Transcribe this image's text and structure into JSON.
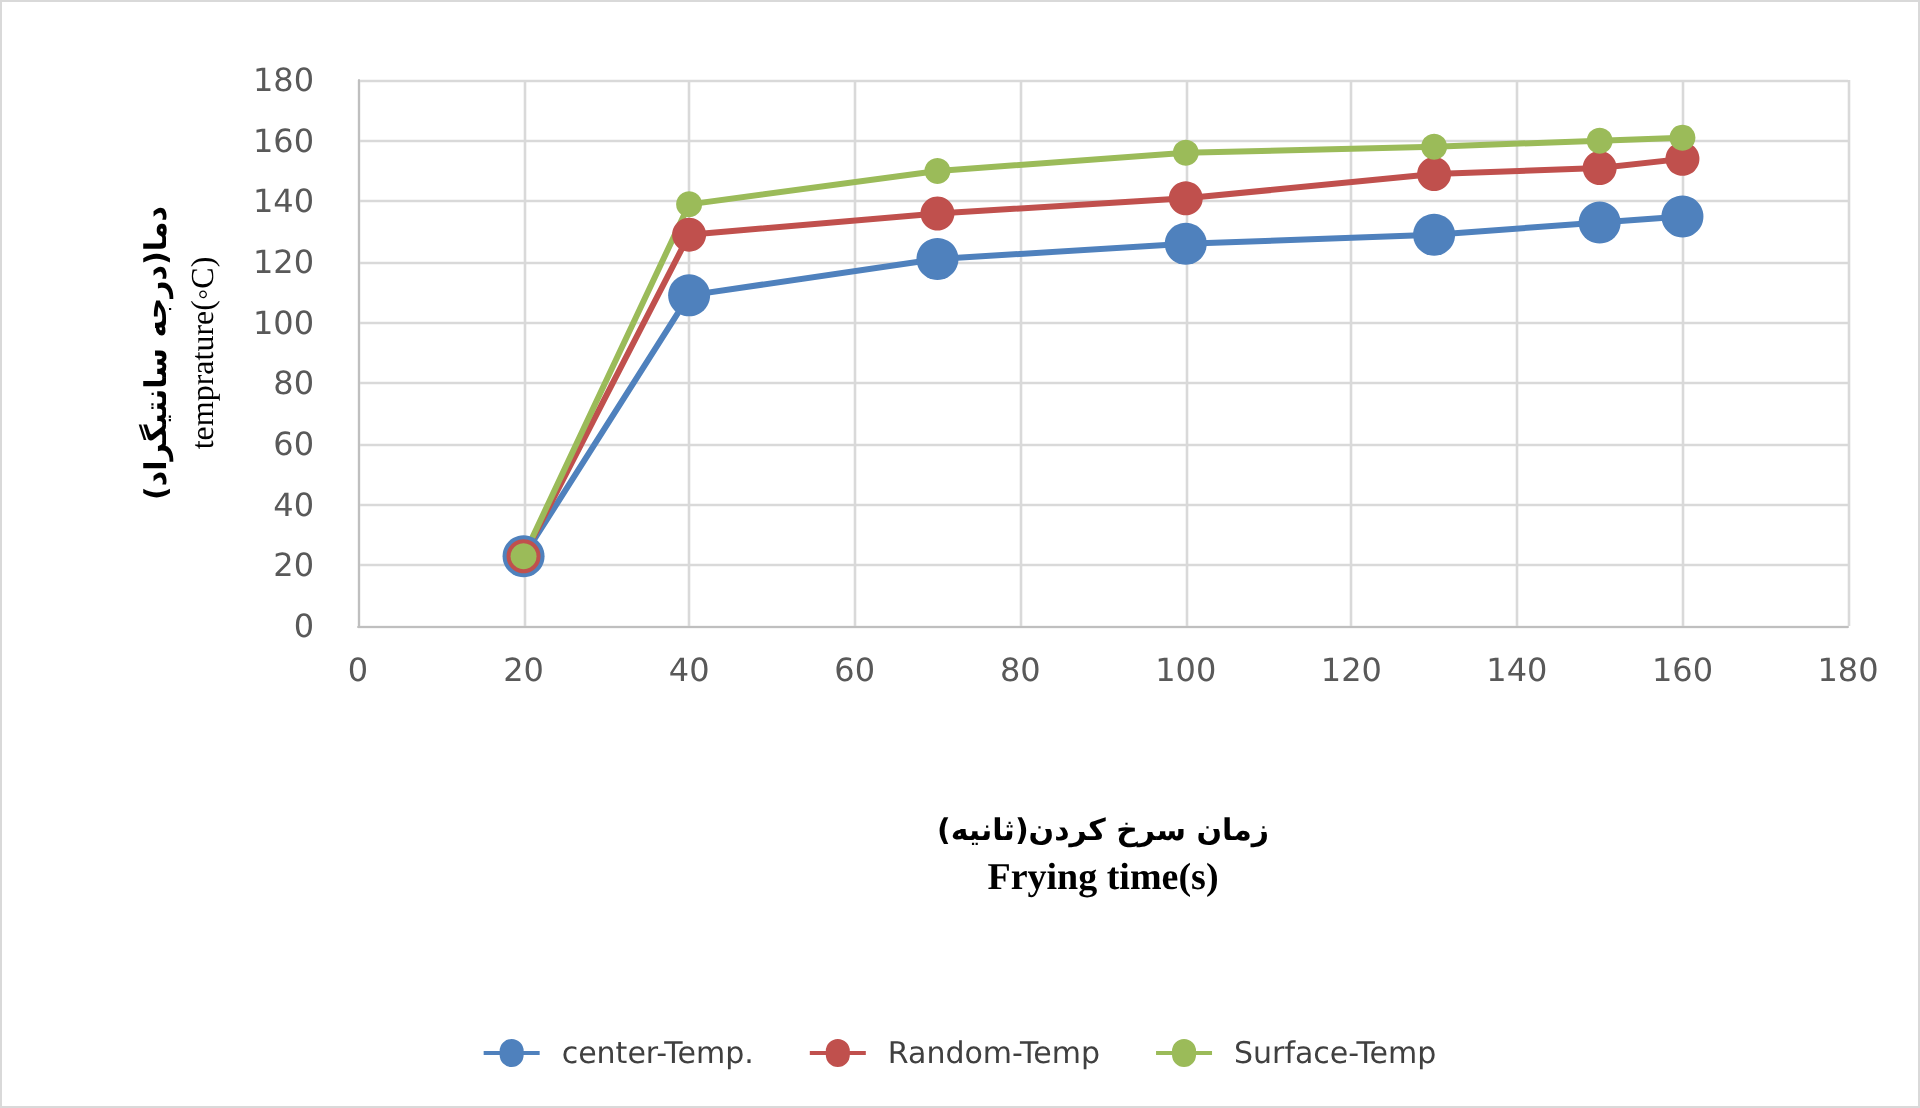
{
  "chart_data": {
    "type": "line",
    "xlabel": "زمان سرخ کردن(ثانیه)\nFrying time(s)",
    "ylabel": "دما(درجه سانتیگراد)\ntemprature(◦C)",
    "x": [
      20,
      40,
      70,
      100,
      130,
      150,
      160
    ],
    "series": [
      {
        "name": "center-Temp.",
        "color": "#4f81bd",
        "values": [
          23,
          109,
          121,
          126,
          129,
          133,
          135
        ]
      },
      {
        "name": "Random-Temp",
        "color": "#c0504d",
        "values": [
          23,
          129,
          136,
          141,
          149,
          151,
          154
        ]
      },
      {
        "name": "Surface-Temp",
        "color": "#9bbb59",
        "values": [
          23,
          139,
          150,
          156,
          158,
          160,
          161
        ]
      }
    ],
    "xlim": [
      0,
      180
    ],
    "xticks": [
      0,
      20,
      40,
      60,
      80,
      100,
      120,
      140,
      160,
      180
    ],
    "ylim": [
      0,
      180
    ],
    "yticks": [
      0,
      20,
      40,
      60,
      80,
      100,
      120,
      140,
      160,
      180
    ],
    "grid": true,
    "legend": "bottom",
    "marker": "circle",
    "line_style": "solid"
  }
}
